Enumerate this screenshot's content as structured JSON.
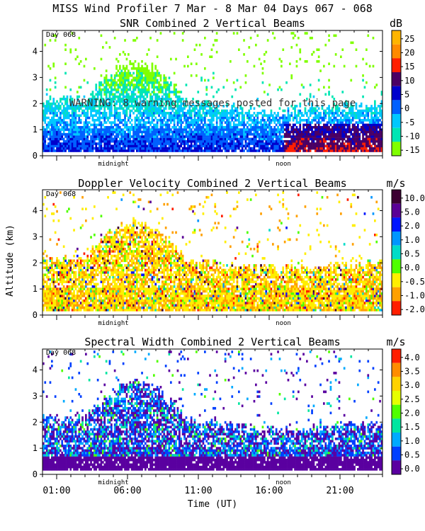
{
  "header": {
    "main_title": "MISS Wind Profiler   7 Mar -  8 Mar 04 Days 067 - 068"
  },
  "axes": {
    "ylabel": "Altitude (km)",
    "xlabel": "Time (UT)",
    "y_ticks": [
      "0",
      "1",
      "2",
      "3",
      "4"
    ],
    "y_range_km": [
      0,
      4.8
    ],
    "x_range_hours": [
      0,
      24
    ],
    "x_tick_labels": [
      "01:00",
      "06:00",
      "11:00",
      "16:00",
      "21:00"
    ],
    "x_tick_hours": [
      1,
      6,
      11,
      16,
      21
    ],
    "midnight_label": "midnight",
    "noon_label": "noon",
    "midnight_hour": 5,
    "noon_hour": 17
  },
  "chart_data": [
    {
      "type": "heatmap",
      "title": "SNR Combined 2 Vertical Beams",
      "unit": "dB",
      "day_label": "Day 068",
      "warning": "WARNING: 8 warning messages posted for this page",
      "xlabel": "Time (UT)",
      "ylabel": "Altitude (km)",
      "colorbar_ticks": [
        "25",
        "20",
        "15",
        "10",
        "5",
        "0",
        "-5",
        "-10",
        "-15"
      ],
      "colorbar_colors": [
        "#ffb400",
        "#ff8a00",
        "#ff1e00",
        "#4b0064",
        "#0000cc",
        "#0060ff",
        "#00c8ff",
        "#00e6b4",
        "#80ff00"
      ],
      "colorbar_range": [
        -17,
        28
      ]
    },
    {
      "type": "heatmap",
      "title": "Doppler Velocity Combined 2 Vertical Beams",
      "unit": "m/s",
      "day_label": "Day 068",
      "xlabel": "Time (UT)",
      "ylabel": "Altitude (km)",
      "colorbar_ticks": [
        "10.0",
        "5.0",
        "2.0",
        "1.0",
        "0.5",
        "0.0",
        "-0.5",
        "-1.0",
        "-2.0"
      ],
      "colorbar_colors": [
        "#3c0032",
        "#5a0096",
        "#0014ff",
        "#0096ff",
        "#00dcc8",
        "#50ff00",
        "#ffee00",
        "#ffa000",
        "#ff1e00"
      ],
      "colorbar_range": [
        -2.0,
        10.0
      ]
    },
    {
      "type": "heatmap",
      "title": "Spectral Width Combined 2 Vertical Beams",
      "unit": "m/s",
      "day_label": "Day 068",
      "xlabel": "Time (UT)",
      "ylabel": "Altitude (km)",
      "colorbar_ticks": [
        "4.0",
        "3.5",
        "3.0",
        "2.5",
        "2.0",
        "1.5",
        "1.0",
        "0.5",
        "0.0"
      ],
      "colorbar_colors": [
        "#ff1e00",
        "#ff8c00",
        "#ffd200",
        "#e6ff00",
        "#50ff00",
        "#00e6a0",
        "#00aaff",
        "#0040ff",
        "#5a00a0"
      ],
      "colorbar_range": [
        0.0,
        4.0
      ]
    }
  ]
}
